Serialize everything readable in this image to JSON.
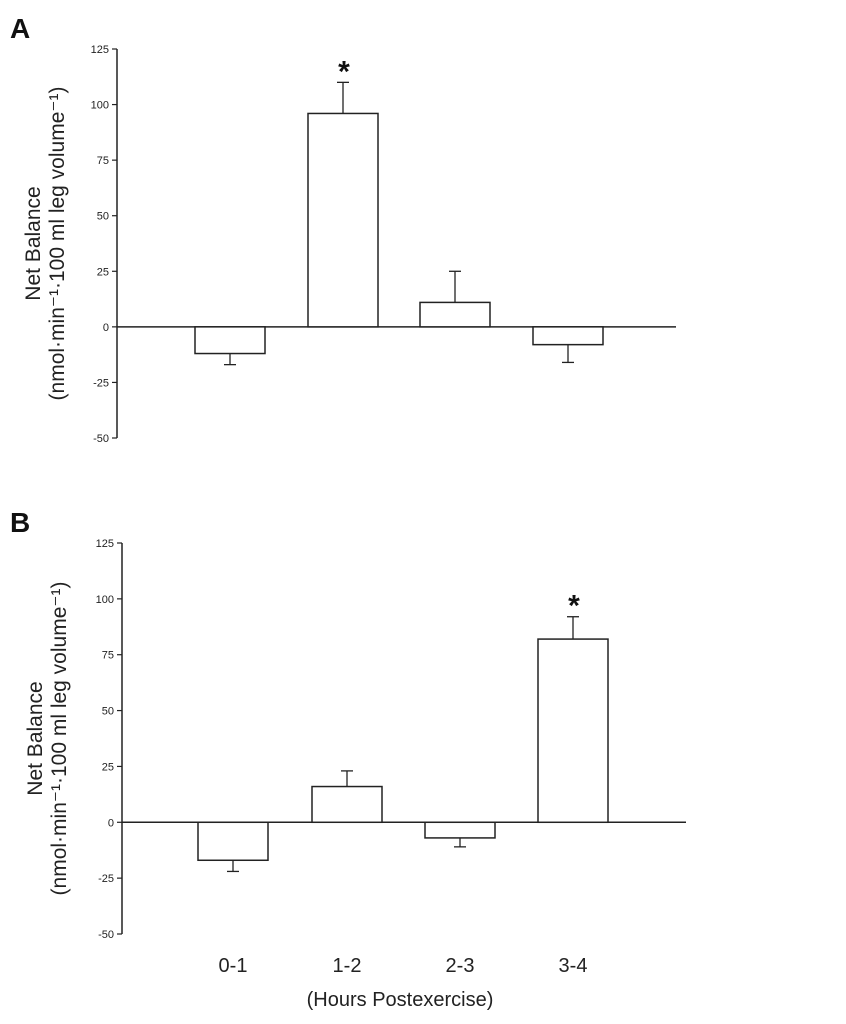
{
  "chart_data": [
    {
      "type": "bar",
      "panel_label": "A",
      "categories": [
        "0-1",
        "1-2",
        "2-3",
        "3-4"
      ],
      "values": [
        -12,
        96,
        11,
        -8
      ],
      "error": [
        5,
        14,
        14,
        8
      ],
      "significance": [
        "",
        "*",
        "",
        ""
      ],
      "ylabel_line1": "Net Balance",
      "ylabel_line2": "(nmol·min⁻¹·100 ml leg volume⁻¹)",
      "ylim": [
        -50,
        125
      ],
      "yticks": [
        125,
        100,
        75,
        50,
        25,
        0,
        -25,
        -50
      ],
      "grid": false
    },
    {
      "type": "bar",
      "panel_label": "B",
      "categories": [
        "0-1",
        "1-2",
        "2-3",
        "3-4"
      ],
      "values": [
        -17,
        16,
        -7,
        82
      ],
      "error": [
        5,
        7,
        4,
        10
      ],
      "significance": [
        "",
        "",
        "",
        "*"
      ],
      "ylabel_line1": "Net Balance",
      "ylabel_line2": "(nmol·min⁻¹·100 ml leg volume⁻¹)",
      "ylim": [
        -50,
        125
      ],
      "yticks": [
        125,
        100,
        75,
        50,
        25,
        0,
        -25,
        -50
      ],
      "xlabel": "(Hours Postexercise)",
      "grid": false
    }
  ]
}
